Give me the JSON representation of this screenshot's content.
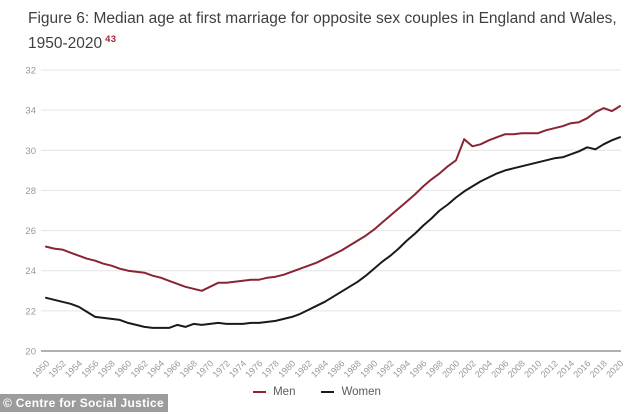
{
  "figure": {
    "title_line1": "Figure 6: Median age at first marriage for opposite sex couples in England and Wales,",
    "title_line2": "1950-2020",
    "footnote_ref": "43"
  },
  "watermark": {
    "text": "© Centre for Social Justice"
  },
  "colors": {
    "men_line": "#8a2433",
    "women_line": "#1a1a1a",
    "gridline": "#e4e4e4",
    "axis_line": "#b1b1b1",
    "tick_label": "#989898",
    "title_text": "#3f3f3f",
    "footnote_red": "#a52639",
    "legend_text": "#5c5c5c",
    "watermark_bg": "#949494",
    "watermark_text": "#ffffff"
  },
  "chart_data": {
    "type": "line",
    "title": "Figure 6: Median age at first marriage for opposite sex couples in England and Wales, 1950-2020",
    "xlabel": "",
    "ylabel": "",
    "ylim": [
      20,
      34
    ],
    "grid": "horizontal",
    "legend_position": "bottom-center",
    "y_tick_labels_top_to_bottom": [
      "32",
      "34",
      "30",
      "28",
      "26",
      "24",
      "22",
      "20"
    ],
    "x_tick_labels": [
      "1950",
      "1952",
      "1954",
      "1956",
      "1958",
      "1960",
      "1962",
      "1964",
      "1966",
      "1968",
      "1970",
      "1972",
      "1974",
      "1976",
      "1978",
      "1980",
      "1982",
      "1984",
      "1986",
      "1988",
      "1990",
      "1992",
      "1994",
      "1996",
      "1998",
      "2000",
      "2002",
      "2004",
      "2006",
      "2008",
      "2010",
      "2012",
      "2014",
      "2016",
      "2018",
      "2020"
    ],
    "x": [
      1950,
      1951,
      1952,
      1953,
      1954,
      1955,
      1956,
      1957,
      1958,
      1959,
      1960,
      1961,
      1962,
      1963,
      1964,
      1965,
      1966,
      1967,
      1968,
      1969,
      1970,
      1971,
      1972,
      1973,
      1974,
      1975,
      1976,
      1977,
      1978,
      1979,
      1980,
      1981,
      1982,
      1983,
      1984,
      1985,
      1986,
      1987,
      1988,
      1989,
      1990,
      1991,
      1992,
      1993,
      1994,
      1995,
      1996,
      1997,
      1998,
      1999,
      2000,
      2001,
      2002,
      2003,
      2004,
      2005,
      2006,
      2007,
      2008,
      2009,
      2010,
      2011,
      2012,
      2013,
      2014,
      2015,
      2016,
      2017,
      2018,
      2019,
      2020
    ],
    "series": [
      {
        "name": "Men",
        "color": "#8a2433",
        "values": [
          25.2,
          25.1,
          25.05,
          24.9,
          24.75,
          24.6,
          24.5,
          24.35,
          24.25,
          24.1,
          24.0,
          23.95,
          23.9,
          23.75,
          23.65,
          23.5,
          23.35,
          23.2,
          23.1,
          23.0,
          23.2,
          23.4,
          23.4,
          23.45,
          23.5,
          23.55,
          23.55,
          23.65,
          23.7,
          23.8,
          23.95,
          24.1,
          24.25,
          24.4,
          24.6,
          24.8,
          25.0,
          25.25,
          25.5,
          25.75,
          26.05,
          26.4,
          26.75,
          27.1,
          27.45,
          27.8,
          28.2,
          28.55,
          28.85,
          29.2,
          29.5,
          30.55,
          30.2,
          30.3,
          30.5,
          30.65,
          30.8,
          30.8,
          30.85,
          30.85,
          30.85,
          31.0,
          31.1,
          31.2,
          31.35,
          31.4,
          31.6,
          31.9,
          32.1,
          31.95,
          32.2
        ]
      },
      {
        "name": "Women",
        "color": "#1a1a1a",
        "values": [
          22.65,
          22.55,
          22.45,
          22.35,
          22.2,
          21.95,
          21.7,
          21.65,
          21.6,
          21.55,
          21.4,
          21.3,
          21.2,
          21.15,
          21.15,
          21.15,
          21.3,
          21.2,
          21.35,
          21.3,
          21.35,
          21.4,
          21.35,
          21.35,
          21.35,
          21.4,
          21.4,
          21.45,
          21.5,
          21.6,
          21.7,
          21.85,
          22.05,
          22.25,
          22.45,
          22.7,
          22.95,
          23.2,
          23.45,
          23.75,
          24.1,
          24.45,
          24.75,
          25.1,
          25.5,
          25.85,
          26.25,
          26.6,
          27.0,
          27.3,
          27.65,
          27.95,
          28.2,
          28.45,
          28.65,
          28.85,
          29.0,
          29.1,
          29.2,
          29.3,
          29.4,
          29.5,
          29.6,
          29.65,
          29.8,
          29.95,
          30.15,
          30.05,
          30.3,
          30.5,
          30.65
        ]
      }
    ]
  }
}
